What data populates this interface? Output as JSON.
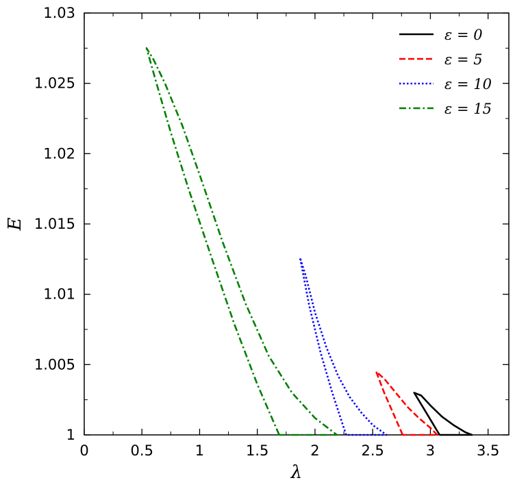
{
  "chart_data": {
    "type": "line",
    "xlabel": "λ",
    "ylabel": "E",
    "xlim": [
      0,
      3.68
    ],
    "ylim": [
      1.0,
      1.03
    ],
    "xticks": [
      0,
      0.5,
      1,
      1.5,
      2,
      2.5,
      3,
      3.5
    ],
    "xtick_labels": [
      "0",
      "0.5",
      "1",
      "1.5",
      "2",
      "2.5",
      "3",
      "3.5"
    ],
    "yticks": [
      1.0,
      1.005,
      1.01,
      1.015,
      1.02,
      1.025,
      1.03
    ],
    "ytick_labels": [
      "1",
      "1.005",
      "1.01",
      "1.015",
      "1.02",
      "1.025",
      "1.03"
    ],
    "legend_position": "top-right",
    "grid": false,
    "series": [
      {
        "name": "ε = 0",
        "color": "#000000",
        "dash": "solid",
        "x": [
          3.08,
          2.97,
          2.86,
          2.92,
          3.0,
          3.1,
          3.2,
          3.3,
          3.36,
          3.2,
          3.08
        ],
        "y": [
          1.0,
          1.0015,
          1.003,
          1.0028,
          1.0021,
          1.0013,
          1.0007,
          1.0002,
          1.0,
          1.0,
          1.0
        ]
      },
      {
        "name": "ε = 5",
        "color": "#ff0000",
        "dash": "dashed",
        "x": [
          2.76,
          2.68,
          2.6,
          2.53,
          2.6,
          2.7,
          2.8,
          2.9,
          3.0,
          3.06,
          2.9,
          2.76
        ],
        "y": [
          1.0,
          1.0015,
          1.003,
          1.0045,
          1.004,
          1.003,
          1.002,
          1.0012,
          1.0005,
          1.0,
          1.0,
          1.0
        ]
      },
      {
        "name": "ε = 10",
        "color": "#0000ff",
        "dash": "dotted",
        "x": [
          2.27,
          2.15,
          2.05,
          1.95,
          1.87,
          1.92,
          2.0,
          2.1,
          2.2,
          2.3,
          2.4,
          2.5,
          2.62,
          2.45,
          2.27
        ],
        "y": [
          1.0,
          1.003,
          1.0058,
          1.0092,
          1.0126,
          1.0113,
          1.0087,
          1.0062,
          1.0042,
          1.0027,
          1.0016,
          1.0007,
          1.0,
          1.0,
          1.0
        ]
      },
      {
        "name": "ε = 15",
        "color": "#008000",
        "dash": "dashdot",
        "x": [
          1.69,
          1.5,
          1.3,
          1.1,
          0.9,
          0.75,
          0.63,
          0.54,
          0.6,
          0.7,
          0.85,
          1.0,
          1.2,
          1.4,
          1.6,
          1.8,
          2.0,
          2.19,
          1.95,
          1.69
        ],
        "y": [
          1.0,
          1.0036,
          1.0079,
          1.0127,
          1.0176,
          1.0215,
          1.0249,
          1.0275,
          1.0267,
          1.025,
          1.022,
          1.0185,
          1.0137,
          1.0093,
          1.0056,
          1.003,
          1.0012,
          1.0,
          1.0,
          1.0
        ]
      }
    ]
  }
}
